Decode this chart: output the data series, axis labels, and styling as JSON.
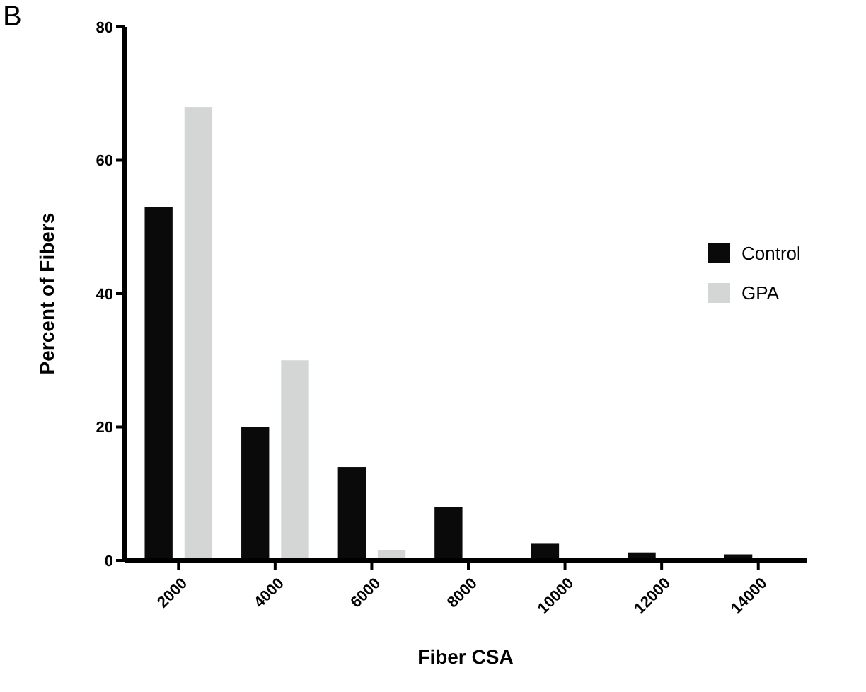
{
  "chart_data": {
    "type": "bar",
    "xlabel": "Fiber CSA",
    "ylabel": "Percent of Fibers",
    "annotations": [
      "B"
    ],
    "categories": [
      "2000",
      "4000",
      "6000",
      "8000",
      "10000",
      "12000",
      "14000"
    ],
    "series": [
      {
        "name": "Control",
        "color": "#0a0a0a",
        "values": [
          53,
          20,
          14,
          8,
          2.5,
          1.2,
          0.9
        ]
      },
      {
        "name": "GPA",
        "color": "#d4d6d6",
        "values": [
          68,
          30,
          1.5,
          0,
          0,
          0,
          0
        ]
      }
    ],
    "ylim": [
      0,
      80
    ],
    "yticks": [
      0,
      20,
      40,
      60,
      80
    ],
    "grid": false,
    "legend": "right"
  }
}
